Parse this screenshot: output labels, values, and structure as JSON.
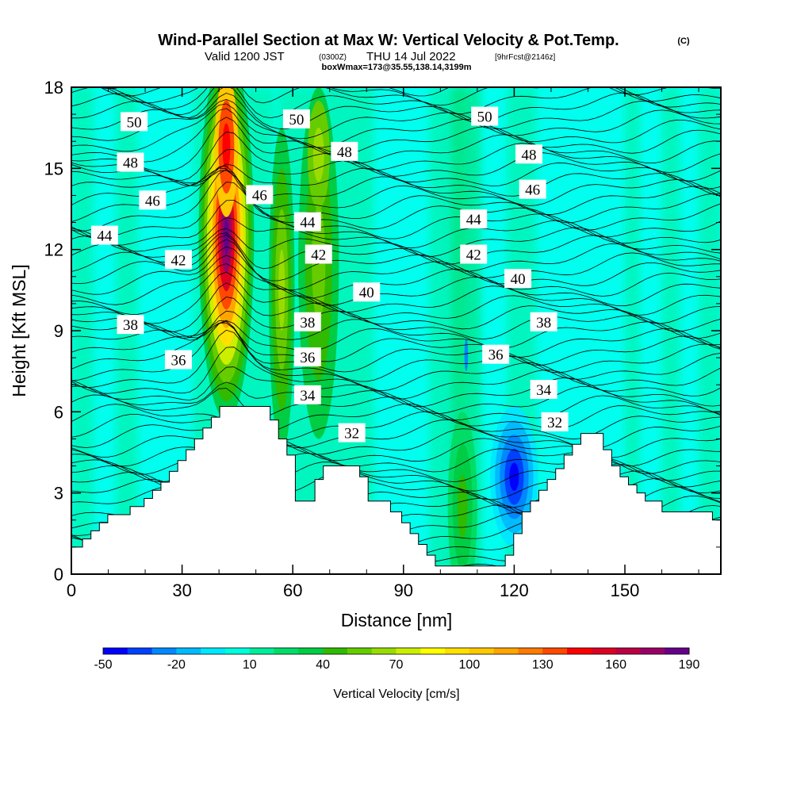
{
  "chart_data": {
    "type": "heatmap",
    "title": "Wind-Parallel Section at Max W: Vertical Velocity & Pot.Temp.",
    "title_mark": "(C)",
    "subtitle_parts": [
      "Valid 1200 JST",
      "(0300Z)",
      "THU 14 Jul 2022",
      "[9hrFcst@2146z]"
    ],
    "subtitle2": "boxWmax=173@35.55,138.14,3199m",
    "xlabel": "Distance [nm]",
    "ylabel": "Height [Kft MSL]",
    "xlim": [
      0,
      176
    ],
    "ylim": [
      0,
      18
    ],
    "x_ticks": [
      "0",
      "30",
      "60",
      "90",
      "120",
      "150"
    ],
    "y_ticks": [
      "0",
      "3",
      "6",
      "9",
      "12",
      "15",
      "18"
    ],
    "colorbar": {
      "label": "Vertical Velocity [cm/s]",
      "tick_labels": [
        "-50",
        "-20",
        "10",
        "40",
        "70",
        "100",
        "130",
        "160",
        "190"
      ],
      "min": -50,
      "max": 190,
      "colors": [
        "#0000ff",
        "#0040ff",
        "#0088ff",
        "#00bbff",
        "#00e8ff",
        "#00ffdd",
        "#00ee99",
        "#00dd66",
        "#00cc44",
        "#30bb00",
        "#66cc00",
        "#99dd00",
        "#ccee00",
        "#ffff00",
        "#ffe000",
        "#ffc800",
        "#ffa500",
        "#ff7a00",
        "#ff4800",
        "#ff0000",
        "#dd0022",
        "#bb0044",
        "#990066",
        "#660088"
      ]
    },
    "series": [
      {
        "name": "Vertical Velocity",
        "cores": [
          {
            "x": 42,
            "y": 13,
            "value": 173
          },
          {
            "x": 57,
            "y": 10,
            "value": 55
          },
          {
            "x": 68,
            "y": 11,
            "value": 45
          },
          {
            "x": 120,
            "y": 3,
            "value": -45
          },
          {
            "x": 106,
            "y": 1,
            "value": 35
          }
        ]
      },
      {
        "name": "Pot.Temp.",
        "contour_labels": [
          {
            "text": "50",
            "x": 17,
            "y": 16.7
          },
          {
            "text": "50",
            "x": 61,
            "y": 16.8
          },
          {
            "text": "50",
            "x": 112,
            "y": 16.9
          },
          {
            "text": "48",
            "x": 16,
            "y": 15.2
          },
          {
            "text": "48",
            "x": 74,
            "y": 15.6
          },
          {
            "text": "48",
            "x": 124,
            "y": 15.5
          },
          {
            "text": "46",
            "x": 22,
            "y": 13.8
          },
          {
            "text": "46",
            "x": 51,
            "y": 14.0
          },
          {
            "text": "46",
            "x": 125,
            "y": 14.2
          },
          {
            "text": "44",
            "x": 9,
            "y": 12.5
          },
          {
            "text": "44",
            "x": 64,
            "y": 13.0
          },
          {
            "text": "44",
            "x": 109,
            "y": 13.1
          },
          {
            "text": "42",
            "x": 29,
            "y": 11.6
          },
          {
            "text": "42",
            "x": 67,
            "y": 11.8
          },
          {
            "text": "42",
            "x": 109,
            "y": 11.8
          },
          {
            "text": "40",
            "x": 80,
            "y": 10.4
          },
          {
            "text": "40",
            "x": 121,
            "y": 10.9
          },
          {
            "text": "38",
            "x": 16,
            "y": 9.2
          },
          {
            "text": "38",
            "x": 64,
            "y": 9.3
          },
          {
            "text": "38",
            "x": 128,
            "y": 9.3
          },
          {
            "text": "36",
            "x": 29,
            "y": 7.9
          },
          {
            "text": "36",
            "x": 64,
            "y": 8.0
          },
          {
            "text": "36",
            "x": 115,
            "y": 8.1
          },
          {
            "text": "34",
            "x": 64,
            "y": 6.6
          },
          {
            "text": "34",
            "x": 128,
            "y": 6.8
          },
          {
            "text": "32",
            "x": 76,
            "y": 5.2
          },
          {
            "text": "32",
            "x": 131,
            "y": 5.6
          }
        ]
      }
    ],
    "terrain_kft": [
      1.0,
      1.0,
      1.0,
      1.0,
      1.3,
      1.3,
      1.3,
      1.6,
      1.6,
      1.6,
      1.9,
      1.9,
      1.9,
      2.2,
      2.2,
      2.2,
      2.2,
      2.2,
      2.2,
      2.2,
      2.2,
      2.5,
      2.5,
      2.5,
      2.5,
      2.5,
      2.8,
      2.8,
      2.8,
      3.1,
      3.1,
      3.1,
      3.4,
      3.4,
      3.4,
      3.8,
      3.8,
      3.8,
      4.2,
      4.2,
      4.2,
      4.6,
      4.6,
      4.6,
      5.0,
      5.0,
      5.0,
      5.4,
      5.4,
      5.4,
      5.8,
      5.8,
      5.8,
      6.2,
      6.2,
      6.2,
      6.2,
      6.2,
      6.2,
      6.2,
      6.2,
      6.2,
      6.2,
      6.2,
      6.2,
      6.2,
      6.2,
      6.2,
      6.2,
      6.2,
      6.2,
      5.7,
      5.7,
      5.7,
      5.0,
      5.0,
      5.0,
      4.4,
      4.4,
      4.4,
      2.7,
      2.7,
      2.7,
      2.7,
      2.7,
      2.7,
      2.7,
      3.5,
      3.5,
      3.5,
      4.0,
      4.0,
      4.0,
      4.0,
      4.0,
      4.0,
      4.0,
      4.0,
      4.0,
      4.0,
      4.0,
      4.0,
      4.0,
      3.6,
      3.6,
      3.6,
      2.7,
      2.7,
      2.7,
      2.7,
      2.7,
      2.7,
      2.7,
      2.7,
      2.3,
      2.3,
      2.3,
      2.3,
      1.9,
      1.9,
      1.9,
      1.5,
      1.5,
      1.5,
      1.1,
      1.1,
      1.1,
      0.7,
      0.7,
      0.7,
      0.3,
      0.3,
      0.3,
      0.3,
      0.3,
      0.3,
      0.3,
      0.3,
      0.3,
      0.3,
      0.3,
      0.3,
      0.3,
      0.3,
      0.3,
      0.3,
      0.3,
      0.3,
      0.3,
      0.3,
      0.3,
      0.3,
      0.3,
      0.3,
      0.3,
      0.7,
      0.7,
      0.7,
      1.5,
      1.5,
      1.5,
      2.3,
      2.3,
      2.3,
      2.7,
      2.7,
      2.7,
      3.1,
      3.1,
      3.1,
      3.5,
      3.5,
      3.5,
      3.9,
      3.9,
      3.9,
      4.4,
      4.4,
      4.4,
      4.8,
      4.8,
      4.8,
      5.2,
      5.2,
      5.2,
      5.2,
      5.2,
      5.2,
      5.2,
      5.2,
      4.6,
      4.6,
      4.6,
      4.0,
      4.0,
      4.0,
      3.6,
      3.6,
      3.6,
      3.3,
      3.3,
      3.3,
      3.0,
      3.0,
      3.0,
      2.7,
      2.7,
      2.7,
      2.7,
      2.7,
      2.7,
      2.3,
      2.3,
      2.3,
      2.3,
      2.3,
      2.3,
      2.3,
      2.3,
      2.3,
      2.3,
      2.3,
      2.3,
      2.3,
      2.3,
      2.3,
      2.3,
      2.3,
      2.3,
      2.0,
      2.0,
      2.0,
      2.0
    ]
  }
}
